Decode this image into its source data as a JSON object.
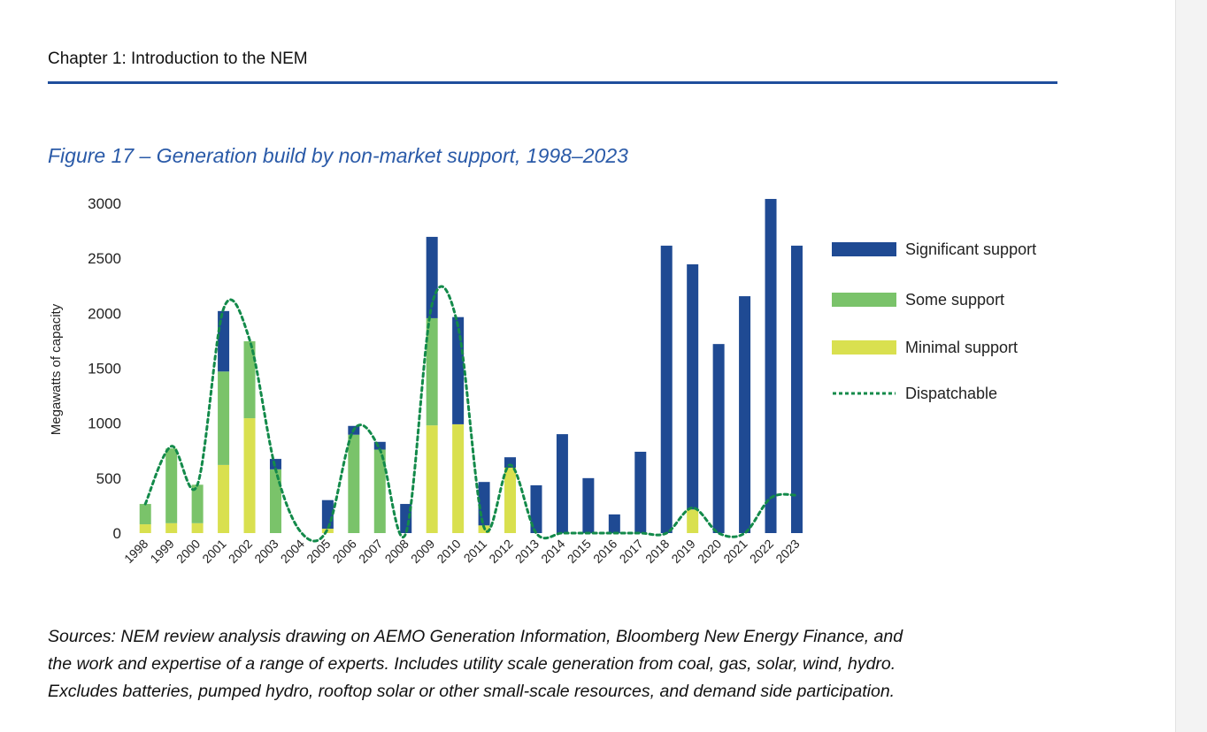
{
  "header": {
    "chapter": "Chapter 1: Introduction to the NEM"
  },
  "figure": {
    "title": "Figure 17 – Generation build by non-market support, 1998–2023"
  },
  "sources": {
    "line1": "Sources: NEM review analysis drawing on AEMO Generation Information, Bloomberg New Energy Finance, and",
    "line2": "the work and expertise of a range of experts. Includes utility scale generation from coal, gas, solar, wind, hydro.",
    "line3": "Excludes batteries, pumped hydro, rooftop solar or other small-scale resources, and demand side participation."
  },
  "chart_data": {
    "type": "bar",
    "stacked": true,
    "title": "Figure 17 – Generation build by non-market support, 1998–2023",
    "xlabel": "",
    "ylabel": "Megawatts of capacity",
    "ylim": [
      0,
      3000
    ],
    "yticks": [
      "0",
      "500",
      "1000",
      "1500",
      "2000",
      "2500",
      "3000"
    ],
    "ytick_values": [
      0,
      500,
      1000,
      1500,
      2000,
      2500,
      3000
    ],
    "grid": false,
    "legend_position": "right",
    "categories": [
      "1998",
      "1999",
      "2000",
      "2001",
      "2002",
      "2003",
      "2004",
      "2005",
      "2006",
      "2007",
      "2008",
      "2009",
      "2010",
      "2011",
      "2012",
      "2013",
      "2014",
      "2015",
      "2016",
      "2017",
      "2018",
      "2019",
      "2020",
      "2021",
      "2022",
      "2023"
    ],
    "series": [
      {
        "name": "Minimal support",
        "color": "#d9e04f",
        "values": [
          80,
          90,
          90,
          620,
          1045,
          0,
          0,
          40,
          0,
          0,
          0,
          980,
          990,
          70,
          595,
          0,
          0,
          0,
          0,
          0,
          0,
          215,
          0,
          0,
          0,
          0
        ]
      },
      {
        "name": "Some support",
        "color": "#7ac36a",
        "values": [
          185,
          680,
          350,
          850,
          700,
          580,
          0,
          0,
          895,
          760,
          0,
          975,
          0,
          0,
          0,
          0,
          0,
          0,
          0,
          0,
          0,
          0,
          0,
          0,
          0,
          0
        ]
      },
      {
        "name": "Significant support",
        "color": "#1f4a93",
        "values": [
          0,
          0,
          0,
          550,
          0,
          95,
          0,
          260,
          80,
          70,
          265,
          740,
          975,
          395,
          95,
          435,
          900,
          500,
          170,
          740,
          2615,
          2230,
          1720,
          2155,
          3040,
          2615
        ]
      }
    ],
    "line_series": {
      "name": "Dispatchable",
      "color": "#138a4a",
      "style": "dotted",
      "values": [
        265,
        790,
        440,
        2040,
        1760,
        580,
        0,
        40,
        940,
        760,
        0,
        2080,
        1880,
        50,
        620,
        0,
        0,
        0,
        0,
        0,
        0,
        230,
        0,
        0,
        320,
        345
      ]
    },
    "legend": [
      "Significant support",
      "Some support",
      "Minimal support",
      "Dispatchable"
    ]
  }
}
